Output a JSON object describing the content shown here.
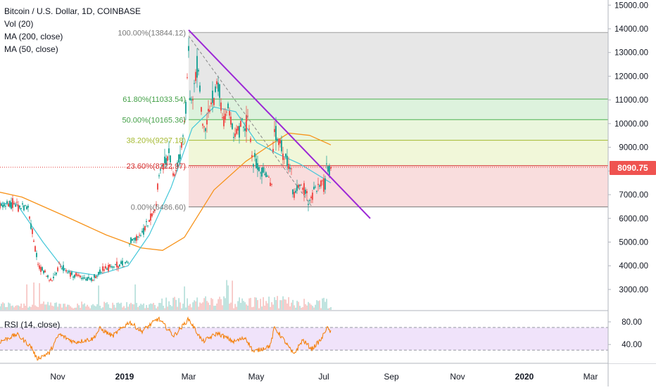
{
  "legend": {
    "title": "Bitcoin / U.S. Dollar, 1D, COINBASE",
    "indicators": [
      "Vol (20)",
      "MA (200, close)",
      "MA (50, close)"
    ],
    "rsi": "RSI (14, close)"
  },
  "price_label": "8090.75",
  "colors": {
    "up": "#26a69a",
    "down": "#ef5350",
    "ma200": "#f7931a",
    "ma50": "#43c7d9",
    "trendline": "#9c27d6",
    "rsi_line": "#f57c00",
    "rsi_band": "#e9d7f8"
  },
  "chart_data": [
    {
      "type": "candlestick",
      "title": "Bitcoin / U.S. Dollar, 1D, COINBASE",
      "x_ticks": [
        "Nov",
        "2019",
        "Mar",
        "May",
        "Jul",
        "Sep",
        "Nov",
        "2020",
        "Mar"
      ],
      "y_ticks": [
        "15000.00",
        "14000.00",
        "13000.00",
        "12000.00",
        "11000.00",
        "10000.00",
        "9000.00",
        "8000.00",
        "7000.00",
        "6000.00",
        "5000.00",
        "4000.00",
        "3000.00"
      ],
      "ylim": [
        2200,
        15300
      ],
      "last_price": 8090.75,
      "fib_levels": [
        {
          "label": "100.00%(13844.12)",
          "value": 13844.12
        },
        {
          "label": "61.80%(11033.54)",
          "value": 11033.54
        },
        {
          "label": "50.00%(10165.36)",
          "value": 10165.36
        },
        {
          "label": "38.20%(9297.18)",
          "value": 9297.18
        },
        {
          "label": "23.60%(8222.97)",
          "value": 8222.97
        },
        {
          "label": "0.00%(6486.60)",
          "value": 6486.6
        }
      ],
      "price_path": [
        {
          "date": "2018-10-01",
          "value": 6550
        },
        {
          "date": "2018-10-20",
          "value": 6650
        },
        {
          "date": "2018-11-10",
          "value": 6400
        },
        {
          "date": "2018-11-20",
          "value": 4700
        },
        {
          "date": "2018-11-25",
          "value": 4000
        },
        {
          "date": "2018-12-15",
          "value": 3300
        },
        {
          "date": "2018-12-24",
          "value": 4000
        },
        {
          "date": "2019-01-10",
          "value": 3650
        },
        {
          "date": "2019-02-07",
          "value": 3400
        },
        {
          "date": "2019-02-24",
          "value": 3850
        },
        {
          "date": "2019-03-20",
          "value": 4050
        },
        {
          "date": "2019-04-01",
          "value": 4150
        },
        {
          "date": "2019-04-03",
          "value": 5000
        },
        {
          "date": "2019-04-20",
          "value": 5300
        },
        {
          "date": "2019-05-11",
          "value": 6500
        },
        {
          "date": "2019-05-14",
          "value": 7900
        },
        {
          "date": "2019-05-30",
          "value": 8600
        },
        {
          "date": "2019-06-05",
          "value": 7700
        },
        {
          "date": "2019-06-15",
          "value": 8900
        },
        {
          "date": "2019-06-21",
          "value": 10200
        },
        {
          "date": "2019-06-26",
          "value": 13000
        },
        {
          "date": "2019-06-27",
          "value": 11200
        },
        {
          "date": "2019-07-01",
          "value": 10800
        },
        {
          "date": "2019-07-09",
          "value": 12500
        },
        {
          "date": "2019-07-16",
          "value": 10000
        },
        {
          "date": "2019-07-17",
          "value": 9500
        },
        {
          "date": "2019-08-06",
          "value": 11800
        },
        {
          "date": "2019-08-15",
          "value": 10000
        },
        {
          "date": "2019-08-20",
          "value": 10800
        },
        {
          "date": "2019-08-29",
          "value": 9600
        },
        {
          "date": "2019-09-19",
          "value": 10200
        },
        {
          "date": "2019-09-24",
          "value": 8500
        },
        {
          "date": "2019-10-01",
          "value": 8300
        },
        {
          "date": "2019-10-22",
          "value": 7500
        },
        {
          "date": "2019-10-25",
          "value": 9300
        },
        {
          "date": "2019-10-26",
          "value": 9600
        },
        {
          "date": "2019-11-08",
          "value": 8800
        },
        {
          "date": "2019-11-18",
          "value": 8200
        },
        {
          "date": "2019-11-22",
          "value": 7000
        },
        {
          "date": "2019-12-01",
          "value": 7500
        },
        {
          "date": "2019-12-18",
          "value": 6600
        },
        {
          "date": "2019-12-20",
          "value": 7200
        },
        {
          "date": "2020-01-06",
          "value": 7500
        },
        {
          "date": "2020-01-08",
          "value": 8100
        },
        {
          "date": "2020-01-14",
          "value": 8090.75
        }
      ],
      "ma200": [
        {
          "date": "2018-07-15",
          "value": 7700
        },
        {
          "date": "2018-09-01",
          "value": 7300
        },
        {
          "date": "2018-11-01",
          "value": 6900
        },
        {
          "date": "2019-01-01",
          "value": 6100
        },
        {
          "date": "2019-03-01",
          "value": 5300
        },
        {
          "date": "2019-04-20",
          "value": 4750
        },
        {
          "date": "2019-05-20",
          "value": 4650
        },
        {
          "date": "2019-06-20",
          "value": 5200
        },
        {
          "date": "2019-08-01",
          "value": 7200
        },
        {
          "date": "2019-09-15",
          "value": 8400
        },
        {
          "date": "2019-10-25",
          "value": 9200
        },
        {
          "date": "2019-11-15",
          "value": 9600
        },
        {
          "date": "2019-12-15",
          "value": 9500
        },
        {
          "date": "2020-01-14",
          "value": 9100
        }
      ],
      "ma50": [
        {
          "date": "2018-07-15",
          "value": 6400
        },
        {
          "date": "2018-09-01",
          "value": 6700
        },
        {
          "date": "2018-10-25",
          "value": 6600
        },
        {
          "date": "2018-12-01",
          "value": 5000
        },
        {
          "date": "2019-01-01",
          "value": 3800
        },
        {
          "date": "2019-02-15",
          "value": 3600
        },
        {
          "date": "2019-04-01",
          "value": 4000
        },
        {
          "date": "2019-05-01",
          "value": 5300
        },
        {
          "date": "2019-06-01",
          "value": 7300
        },
        {
          "date": "2019-07-01",
          "value": 9800
        },
        {
          "date": "2019-08-01",
          "value": 10700
        },
        {
          "date": "2019-09-01",
          "value": 10500
        },
        {
          "date": "2019-10-01",
          "value": 9200
        },
        {
          "date": "2019-11-01",
          "value": 8700
        },
        {
          "date": "2019-12-01",
          "value": 8300
        },
        {
          "date": "2020-01-14",
          "value": 7500
        }
      ],
      "trendlines": [
        {
          "color": "#9c27d6",
          "points": [
            {
              "date": "2019-06-26",
              "value": 13950
            },
            {
              "date": "2020-03-10",
              "value": 6000
            }
          ]
        },
        {
          "color": "#888888",
          "dashed": true,
          "points": [
            {
              "date": "2019-06-26",
              "value": 13700
            },
            {
              "date": "2019-12-18",
              "value": 6500
            }
          ]
        }
      ]
    },
    {
      "type": "line",
      "title": "RSI (14, close)",
      "y_ticks": [
        "80.00",
        "40.00"
      ],
      "ylim": [
        10,
        95
      ],
      "bands": [
        70,
        30
      ],
      "values_path": [
        {
          "date": "2018-10-01",
          "value": 45
        },
        {
          "date": "2018-10-25",
          "value": 58
        },
        {
          "date": "2018-11-15",
          "value": 35
        },
        {
          "date": "2018-11-22",
          "value": 15
        },
        {
          "date": "2018-12-10",
          "value": 25
        },
        {
          "date": "2018-12-24",
          "value": 58
        },
        {
          "date": "2019-01-15",
          "value": 44
        },
        {
          "date": "2019-02-10",
          "value": 50
        },
        {
          "date": "2019-02-20",
          "value": 68
        },
        {
          "date": "2019-03-10",
          "value": 55
        },
        {
          "date": "2019-04-03",
          "value": 80
        },
        {
          "date": "2019-04-20",
          "value": 63
        },
        {
          "date": "2019-05-14",
          "value": 86
        },
        {
          "date": "2019-06-05",
          "value": 55
        },
        {
          "date": "2019-06-26",
          "value": 85
        },
        {
          "date": "2019-07-16",
          "value": 45
        },
        {
          "date": "2019-08-06",
          "value": 60
        },
        {
          "date": "2019-08-29",
          "value": 45
        },
        {
          "date": "2019-09-15",
          "value": 52
        },
        {
          "date": "2019-09-26",
          "value": 27
        },
        {
          "date": "2019-10-20",
          "value": 38
        },
        {
          "date": "2019-10-26",
          "value": 70
        },
        {
          "date": "2019-11-10",
          "value": 45
        },
        {
          "date": "2019-11-22",
          "value": 22
        },
        {
          "date": "2019-12-05",
          "value": 48
        },
        {
          "date": "2019-12-18",
          "value": 32
        },
        {
          "date": "2020-01-01",
          "value": 50
        },
        {
          "date": "2020-01-08",
          "value": 70
        },
        {
          "date": "2020-01-14",
          "value": 62
        }
      ]
    }
  ]
}
